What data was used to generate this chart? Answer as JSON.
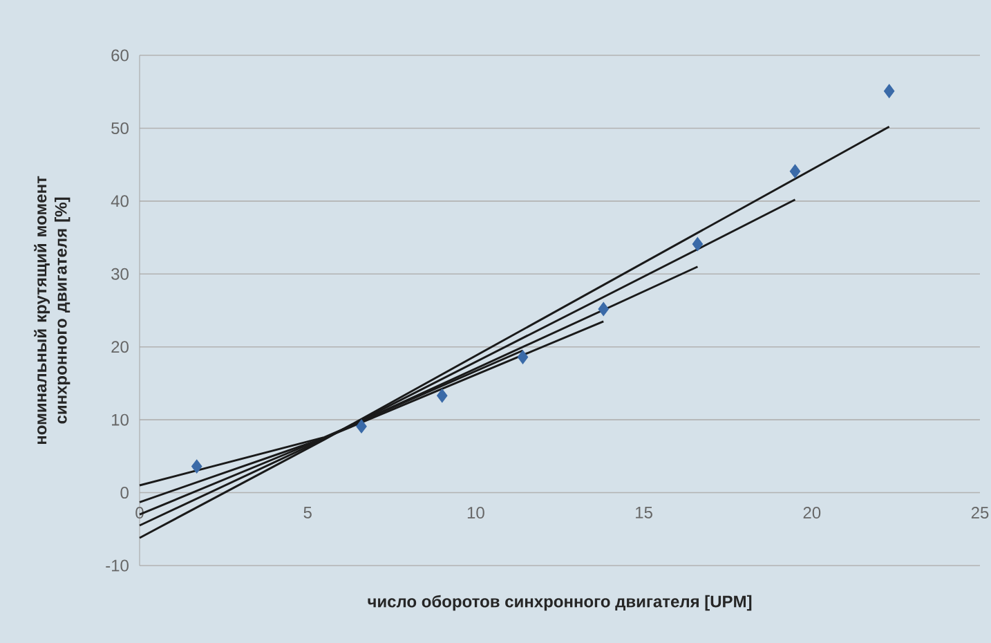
{
  "chart_data": {
    "type": "scatter",
    "xlabel": "число оборотов синхронного двигателя [UPM]",
    "ylabel": "номинальный крутящий момент синхронного двигателя [%]",
    "xlim": [
      0,
      25
    ],
    "xticks": [
      0,
      5,
      10,
      15,
      20,
      25
    ],
    "ylim": [
      -10,
      60
    ],
    "yticks": [
      -10,
      0,
      10,
      20,
      30,
      40,
      50,
      60
    ],
    "grid": "y",
    "legend": false,
    "series": [
      {
        "marker": "diamond",
        "color": "#3a6aa8",
        "x": [
          1.7,
          6.6,
          9.0,
          11.4,
          13.8,
          16.6,
          19.5,
          22.3
        ],
        "values": [
          3.6,
          9.1,
          13.3,
          18.6,
          25.2,
          34.1,
          44.1,
          55.1
        ]
      },
      {
        "type": "line",
        "color": "#1a1a1a",
        "x": [
          0,
          5.5,
          22.3
        ],
        "values": [
          -6.2,
          7.3,
          50.2
        ]
      },
      {
        "type": "line",
        "color": "#1a1a1a",
        "x": [
          0,
          5.5,
          19.5
        ],
        "values": [
          -4.5,
          7.4,
          40.2
        ]
      },
      {
        "type": "line",
        "color": "#1a1a1a",
        "x": [
          0,
          5.5,
          16.6
        ],
        "values": [
          -3.0,
          7.5,
          31.0
        ]
      },
      {
        "type": "line",
        "color": "#1a1a1a",
        "x": [
          0,
          5.5,
          13.8
        ],
        "values": [
          -1.3,
          7.5,
          23.5
        ]
      },
      {
        "type": "line",
        "color": "#1a1a1a",
        "x": [
          0,
          5.5,
          11.4
        ],
        "values": [
          1.0,
          7.6,
          19.5
        ]
      }
    ]
  }
}
